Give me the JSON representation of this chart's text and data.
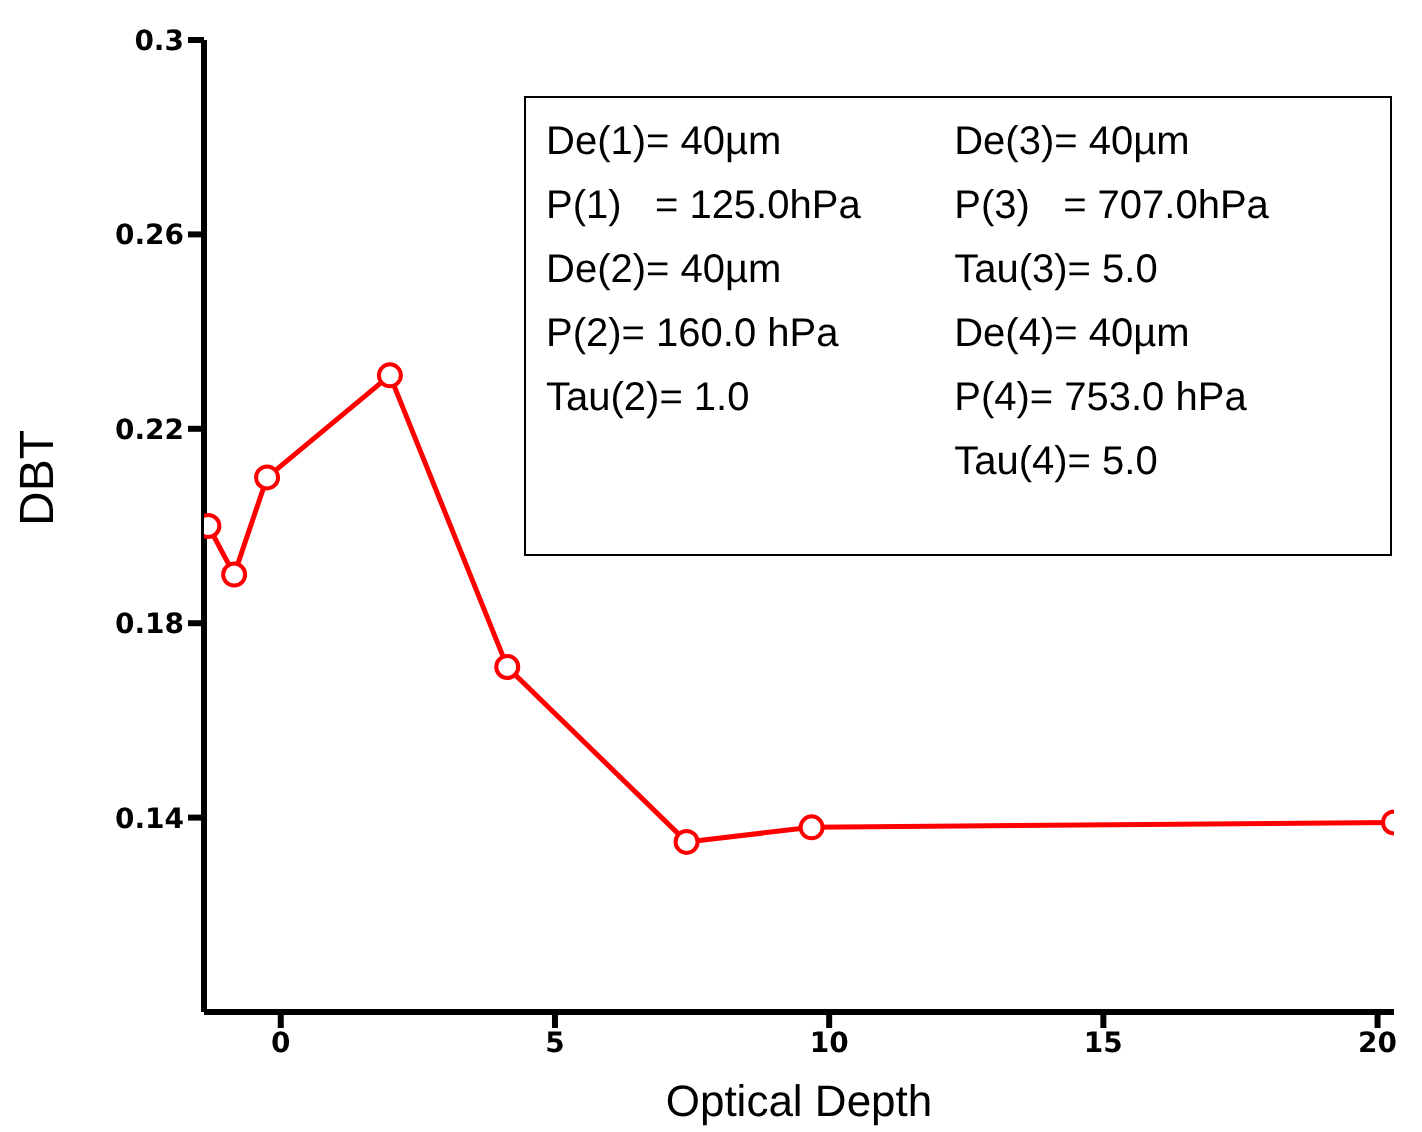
{
  "chart_data": {
    "type": "line",
    "xlabel": "Optical Depth",
    "ylabel": "DBT",
    "x": [
      -1.32,
      -0.85,
      -0.25,
      1.99,
      4.13,
      7.4,
      9.68,
      20.3
    ],
    "series": [
      {
        "color": "#ff0000",
        "values": [
          0.2,
          0.19,
          0.21,
          0.231,
          0.171,
          0.135,
          0.138,
          0.139
        ]
      }
    ],
    "xlim": [
      -1.4,
      20.3
    ],
    "xticks": [
      0,
      5,
      10,
      15,
      20
    ],
    "ylim": [
      0.1,
      0.3
    ],
    "yticks": [
      0.14,
      0.18,
      0.22,
      0.26,
      0.3
    ],
    "marker": "circle",
    "line_style": "solid",
    "grid": false,
    "legend": false,
    "annotations": [
      "De(1)= 40µm",
      "P(1)   = 125.0hPa",
      "De(2)= 40µm",
      "P(2)= 160.0 hPa",
      "Tau(2)= 1.0",
      "De(3)= 40µm",
      "P(3)   = 707.0hPa",
      "Tau(3)= 5.0",
      "De(4)= 40µm",
      "P(4)= 753.0 hPa",
      "Tau(4)= 5.0"
    ]
  }
}
